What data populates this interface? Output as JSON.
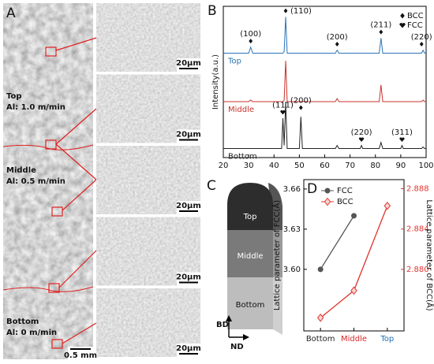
{
  "panels": {
    "A": {
      "label": "A",
      "zones": [
        {
          "title": "Top",
          "condition": "Al: 1.0 m/min"
        },
        {
          "title": "Middle",
          "condition": "Al: 0.5 m/min"
        },
        {
          "title": "Bottom",
          "condition": "Al: 0 m/min"
        }
      ],
      "scale_bar": "0.5 mm",
      "inset_scale_bars": [
        "20μm",
        "20μm",
        "20μm",
        "20μm",
        "20μm"
      ]
    },
    "C": {
      "label": "C",
      "segments": [
        "Top",
        "Middle",
        "Bottom"
      ],
      "axes": [
        "BD",
        "ND"
      ]
    }
  },
  "chart_data": [
    {
      "type": "line",
      "panel_label": "B",
      "y_label": "Intensity(a.u.)",
      "xlim": [
        20,
        100
      ],
      "xticks": [
        20,
        30,
        40,
        50,
        60,
        70,
        80,
        90,
        100
      ],
      "ylim": [
        0,
        100
      ],
      "x": [
        20,
        30,
        30.8,
        31.6,
        43,
        43.5,
        44,
        44.6,
        45.2,
        50,
        50.6,
        51.2,
        64.2,
        64.9,
        65.6,
        74,
        74.5,
        75,
        81.5,
        82.2,
        82.9,
        90,
        90.5,
        91,
        98.2,
        98.8,
        99.4,
        100
      ],
      "series": [
        {
          "name": "Top",
          "color": "#2a74b5",
          "values": [
            69,
            69,
            73,
            69,
            69,
            69,
            70,
            93,
            69,
            69,
            69,
            69,
            69,
            71,
            69,
            69,
            69,
            69,
            69,
            79,
            69,
            69,
            69,
            69,
            69,
            71,
            69,
            69
          ]
        },
        {
          "name": "Middle",
          "color": "#c8332c",
          "values": [
            37,
            37,
            38,
            37,
            37,
            37,
            38,
            64,
            37,
            37,
            37,
            37,
            37,
            39,
            37,
            37,
            37,
            37,
            37,
            48,
            37,
            37,
            37,
            37,
            37,
            38,
            37,
            37
          ]
        },
        {
          "name": "Bottom",
          "color": "#222222",
          "values": [
            6,
            6,
            6,
            6,
            6,
            26,
            8,
            37,
            6,
            6,
            27,
            6,
            6,
            8,
            6,
            6,
            8,
            6,
            6,
            10,
            6,
            6,
            8,
            6,
            6,
            7,
            6,
            6
          ]
        }
      ],
      "phases": [
        {
          "name": "BCC",
          "symbol": "diamond"
        },
        {
          "name": "FCC",
          "symbol": "heart"
        }
      ],
      "annotations": [
        {
          "text": "(100)",
          "x": 30.8,
          "y": 77,
          "symbol": "diamond"
        },
        {
          "text": "(110)",
          "x": 44.6,
          "y": 97,
          "symbol": "diamond"
        },
        {
          "text": "(200)",
          "x": 64.9,
          "y": 75,
          "symbol": "diamond"
        },
        {
          "text": "(211)",
          "x": 82.2,
          "y": 83,
          "symbol": "diamond"
        },
        {
          "text": "(220)",
          "x": 98.2,
          "y": 75,
          "symbol": "diamond"
        },
        {
          "text": "(111)",
          "x": 43.5,
          "y": 30,
          "symbol": "heart"
        },
        {
          "text": "(200)",
          "x": 50.6,
          "y": 33,
          "symbol": "diamond"
        },
        {
          "text": "(220)",
          "x": 74.5,
          "y": 12,
          "symbol": "heart"
        },
        {
          "text": "(311)",
          "x": 90.5,
          "y": 12,
          "symbol": "heart"
        }
      ],
      "legend": "top right"
    },
    {
      "type": "line",
      "panel_label": "D",
      "y_label": "Lattice parameter of FCC(Å)",
      "y2_label": "Lattice parameter of BCC(Å)",
      "categories": [
        "Bottom",
        "Middle",
        "Top"
      ],
      "category_colors": [
        "#222222",
        "#d62728",
        "#1f6fb4"
      ],
      "ylim": [
        3.554,
        3.667
      ],
      "yticks": [
        {
          "value": 3.6,
          "label": "3.60"
        },
        3.63,
        3.66
      ],
      "y2lim": [
        2.8739,
        2.8889
      ],
      "y2ticks": [
        {
          "value": 2.88,
          "label": "2.880"
        },
        2.884,
        2.888
      ],
      "series": [
        {
          "name": "FCC",
          "color": "#555555",
          "marker": "circle",
          "values": [
            3.6,
            3.64,
            null
          ]
        },
        {
          "name": "BCC",
          "color": "#e0352f",
          "marker": "diamond",
          "axis": "y2",
          "values": [
            2.8752,
            2.8779,
            2.8863
          ]
        }
      ],
      "legend": "top left"
    }
  ]
}
